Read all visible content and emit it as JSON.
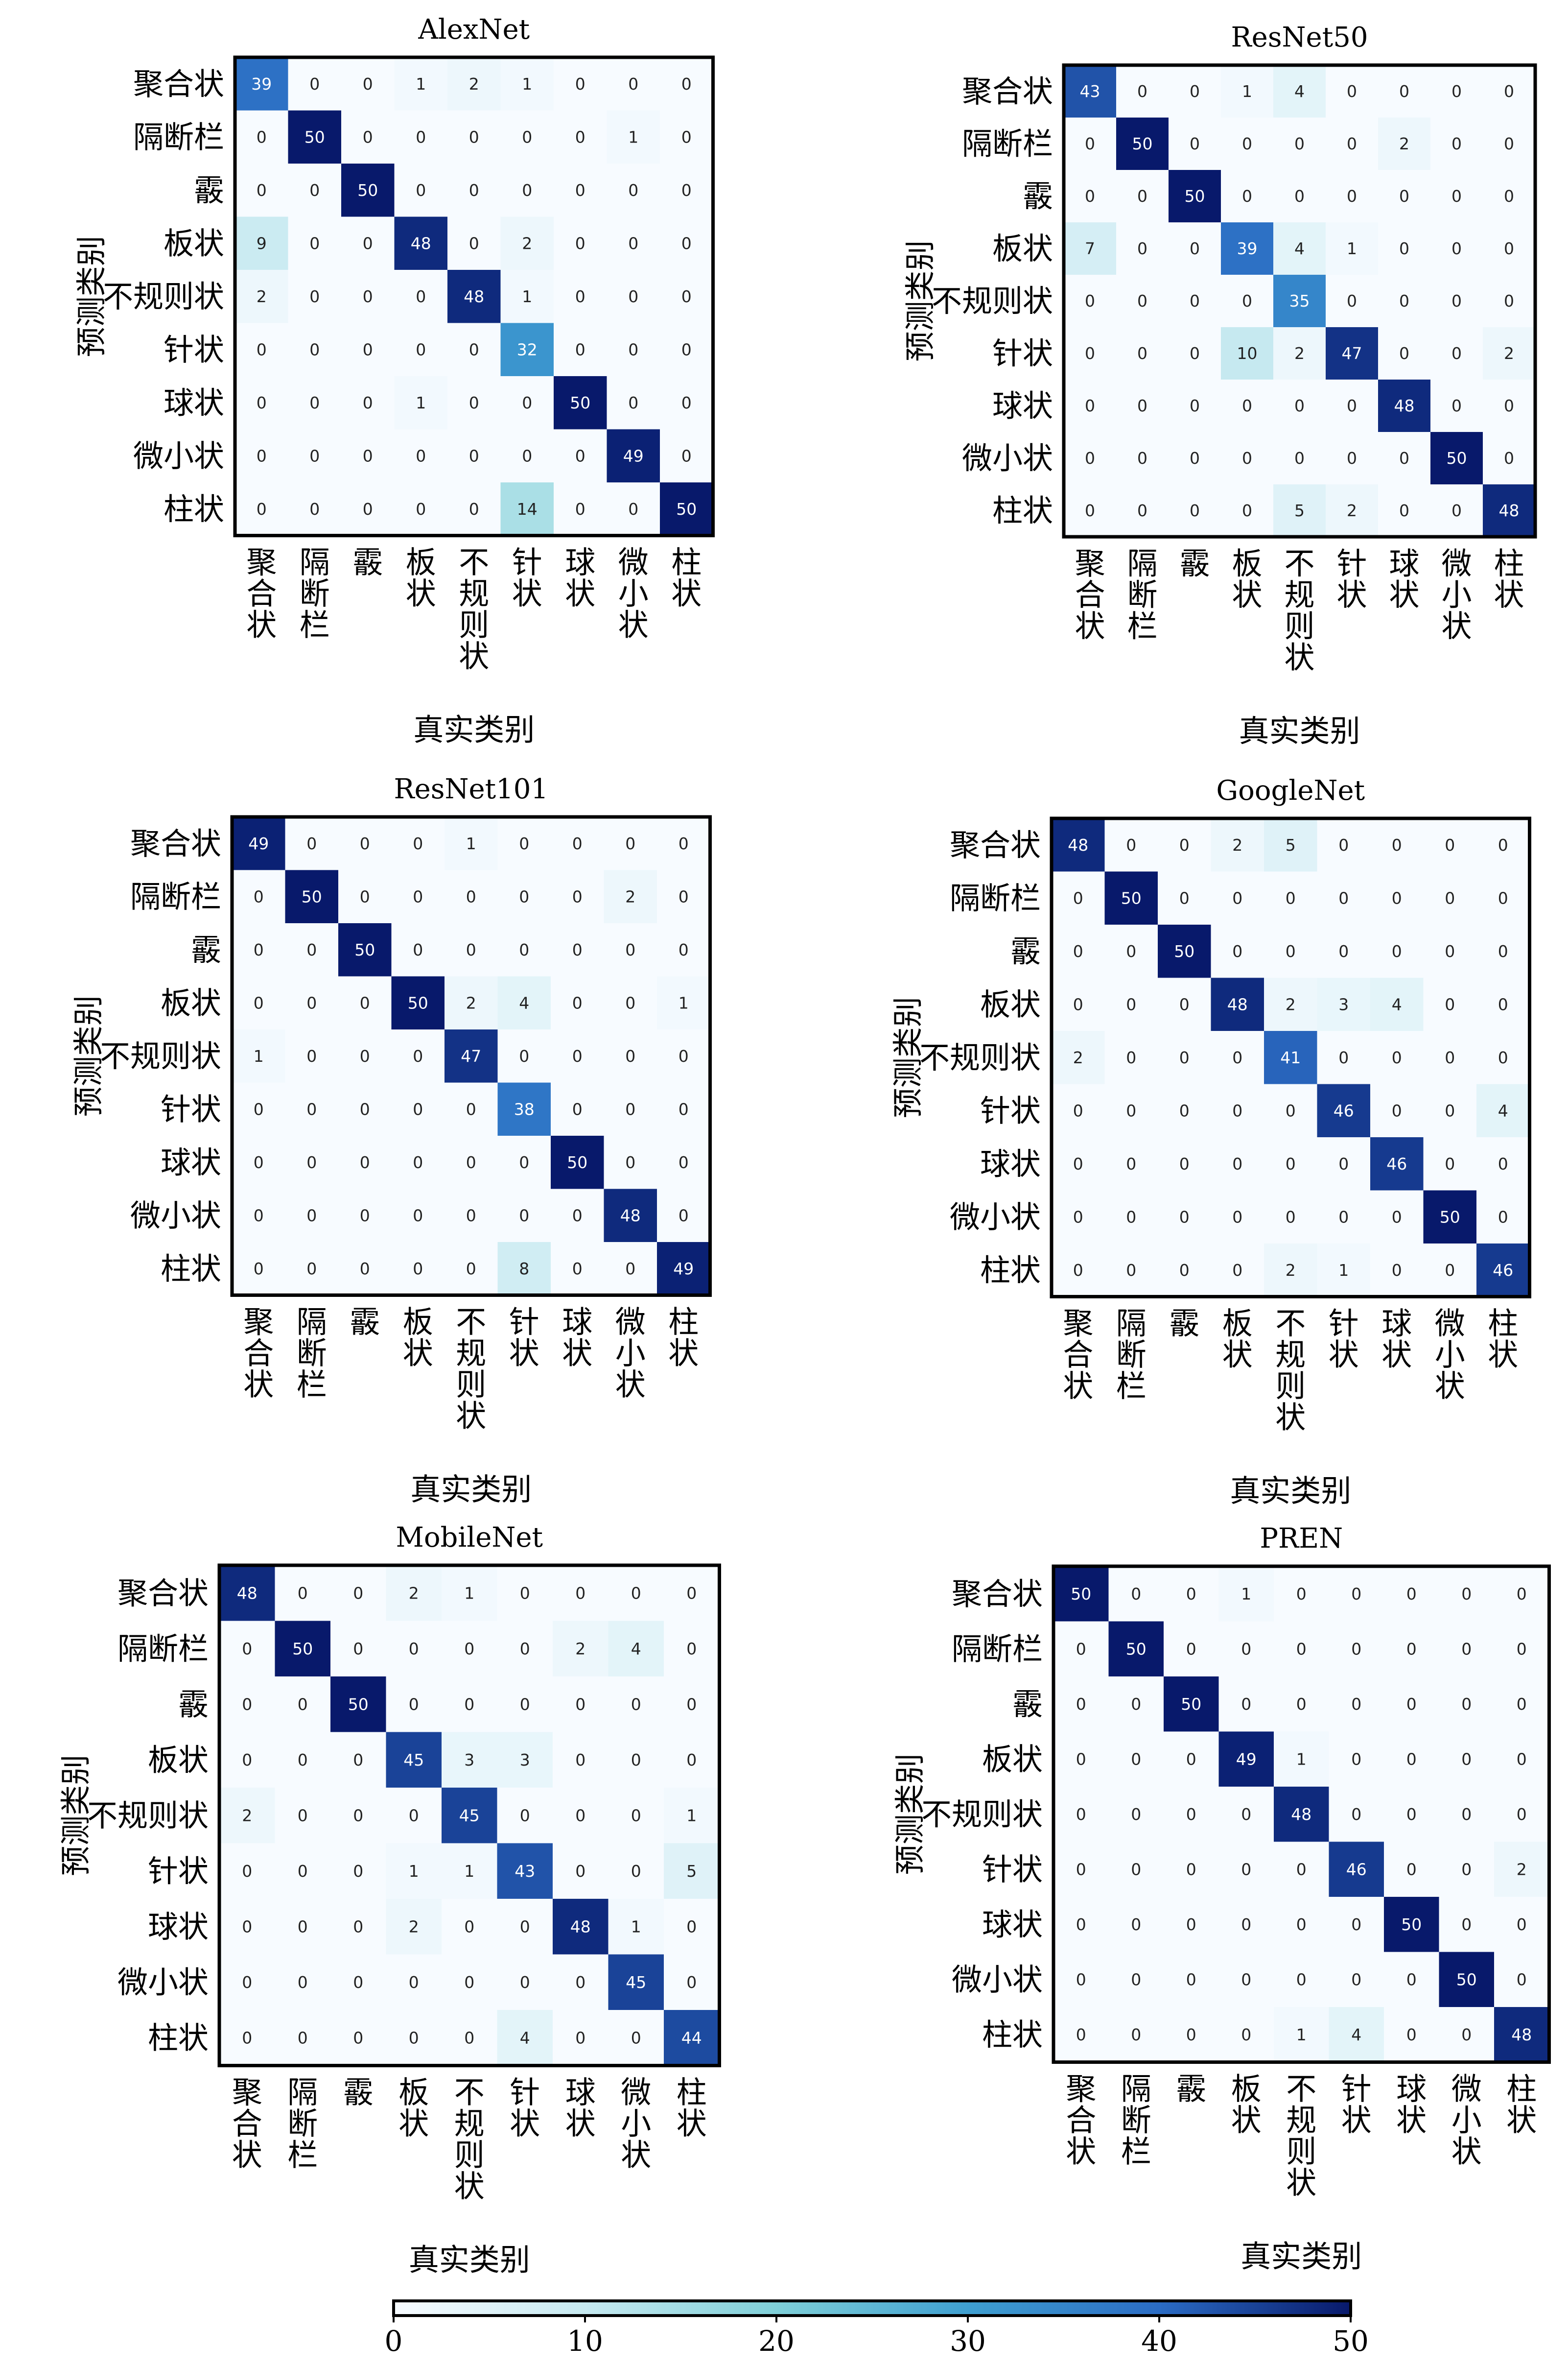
{
  "chart_data": [
    {
      "type": "heatmap",
      "title": "AlexNet",
      "xlabel": "真实类别",
      "ylabel": "预测类别",
      "categories": [
        "聚合状",
        "隔断栏",
        "霰",
        "板状",
        "不规则状",
        "针状",
        "球状",
        "微小状",
        "柱状"
      ],
      "values": [
        [
          39,
          0,
          0,
          1,
          2,
          1,
          0,
          0,
          0
        ],
        [
          0,
          50,
          0,
          0,
          0,
          0,
          0,
          1,
          0
        ],
        [
          0,
          0,
          50,
          0,
          0,
          0,
          0,
          0,
          0
        ],
        [
          9,
          0,
          0,
          48,
          0,
          2,
          0,
          0,
          0
        ],
        [
          2,
          0,
          0,
          0,
          48,
          1,
          0,
          0,
          0
        ],
        [
          0,
          0,
          0,
          0,
          0,
          32,
          0,
          0,
          0
        ],
        [
          0,
          0,
          0,
          1,
          0,
          0,
          50,
          0,
          0
        ],
        [
          0,
          0,
          0,
          0,
          0,
          0,
          0,
          49,
          0
        ],
        [
          0,
          0,
          0,
          0,
          0,
          14,
          0,
          0,
          50
        ]
      ]
    },
    {
      "type": "heatmap",
      "title": "ResNet50",
      "xlabel": "真实类别",
      "ylabel": "预测类别",
      "categories": [
        "聚合状",
        "隔断栏",
        "霰",
        "板状",
        "不规则状",
        "针状",
        "球状",
        "微小状",
        "柱状"
      ],
      "values": [
        [
          43,
          0,
          0,
          1,
          4,
          0,
          0,
          0,
          0
        ],
        [
          0,
          50,
          0,
          0,
          0,
          0,
          2,
          0,
          0
        ],
        [
          0,
          0,
          50,
          0,
          0,
          0,
          0,
          0,
          0
        ],
        [
          7,
          0,
          0,
          39,
          4,
          1,
          0,
          0,
          0
        ],
        [
          0,
          0,
          0,
          0,
          35,
          0,
          0,
          0,
          0
        ],
        [
          0,
          0,
          0,
          10,
          2,
          47,
          0,
          0,
          2
        ],
        [
          0,
          0,
          0,
          0,
          0,
          0,
          48,
          0,
          0
        ],
        [
          0,
          0,
          0,
          0,
          0,
          0,
          0,
          50,
          0
        ],
        [
          0,
          0,
          0,
          0,
          5,
          2,
          0,
          0,
          48
        ]
      ]
    },
    {
      "type": "heatmap",
      "title": "ResNet101",
      "xlabel": "真实类别",
      "ylabel": "预测类别",
      "categories": [
        "聚合状",
        "隔断栏",
        "霰",
        "板状",
        "不规则状",
        "针状",
        "球状",
        "微小状",
        "柱状"
      ],
      "values": [
        [
          49,
          0,
          0,
          0,
          1,
          0,
          0,
          0,
          0
        ],
        [
          0,
          50,
          0,
          0,
          0,
          0,
          0,
          2,
          0
        ],
        [
          0,
          0,
          50,
          0,
          0,
          0,
          0,
          0,
          0
        ],
        [
          0,
          0,
          0,
          50,
          2,
          4,
          0,
          0,
          1
        ],
        [
          1,
          0,
          0,
          0,
          47,
          0,
          0,
          0,
          0
        ],
        [
          0,
          0,
          0,
          0,
          0,
          38,
          0,
          0,
          0
        ],
        [
          0,
          0,
          0,
          0,
          0,
          0,
          50,
          0,
          0
        ],
        [
          0,
          0,
          0,
          0,
          0,
          0,
          0,
          48,
          0
        ],
        [
          0,
          0,
          0,
          0,
          0,
          8,
          0,
          0,
          49
        ]
      ]
    },
    {
      "type": "heatmap",
      "title": "GoogleNet",
      "xlabel": "真实类别",
      "ylabel": "预测类别",
      "categories": [
        "聚合状",
        "隔断栏",
        "霰",
        "板状",
        "不规则状",
        "针状",
        "球状",
        "微小状",
        "柱状"
      ],
      "values": [
        [
          48,
          0,
          0,
          2,
          5,
          0,
          0,
          0,
          0
        ],
        [
          0,
          50,
          0,
          0,
          0,
          0,
          0,
          0,
          0
        ],
        [
          0,
          0,
          50,
          0,
          0,
          0,
          0,
          0,
          0
        ],
        [
          0,
          0,
          0,
          48,
          2,
          3,
          4,
          0,
          0
        ],
        [
          2,
          0,
          0,
          0,
          41,
          0,
          0,
          0,
          0
        ],
        [
          0,
          0,
          0,
          0,
          0,
          46,
          0,
          0,
          4
        ],
        [
          0,
          0,
          0,
          0,
          0,
          0,
          46,
          0,
          0
        ],
        [
          0,
          0,
          0,
          0,
          0,
          0,
          0,
          50,
          0
        ],
        [
          0,
          0,
          0,
          0,
          2,
          1,
          0,
          0,
          46
        ]
      ]
    },
    {
      "type": "heatmap",
      "title": "MobileNet",
      "xlabel": "真实类别",
      "ylabel": "预测类别",
      "categories": [
        "聚合状",
        "隔断栏",
        "霰",
        "板状",
        "不规则状",
        "针状",
        "球状",
        "微小状",
        "柱状"
      ],
      "values": [
        [
          48,
          0,
          0,
          2,
          1,
          0,
          0,
          0,
          0
        ],
        [
          0,
          50,
          0,
          0,
          0,
          0,
          2,
          4,
          0
        ],
        [
          0,
          0,
          50,
          0,
          0,
          0,
          0,
          0,
          0
        ],
        [
          0,
          0,
          0,
          45,
          3,
          3,
          0,
          0,
          0
        ],
        [
          2,
          0,
          0,
          0,
          45,
          0,
          0,
          0,
          1
        ],
        [
          0,
          0,
          0,
          1,
          1,
          43,
          0,
          0,
          5
        ],
        [
          0,
          0,
          0,
          2,
          0,
          0,
          48,
          1,
          0
        ],
        [
          0,
          0,
          0,
          0,
          0,
          0,
          0,
          45,
          0
        ],
        [
          0,
          0,
          0,
          0,
          0,
          4,
          0,
          0,
          44
        ]
      ]
    },
    {
      "type": "heatmap",
      "title": "PREN",
      "xlabel": "真实类别",
      "ylabel": "预测类别",
      "categories": [
        "聚合状",
        "隔断栏",
        "霰",
        "板状",
        "不规则状",
        "针状",
        "球状",
        "微小状",
        "柱状"
      ],
      "values": [
        [
          50,
          0,
          0,
          1,
          0,
          0,
          0,
          0,
          0
        ],
        [
          0,
          50,
          0,
          0,
          0,
          0,
          0,
          0,
          0
        ],
        [
          0,
          0,
          50,
          0,
          0,
          0,
          0,
          0,
          0
        ],
        [
          0,
          0,
          0,
          49,
          1,
          0,
          0,
          0,
          0
        ],
        [
          0,
          0,
          0,
          0,
          48,
          0,
          0,
          0,
          0
        ],
        [
          0,
          0,
          0,
          0,
          0,
          46,
          0,
          0,
          2
        ],
        [
          0,
          0,
          0,
          0,
          0,
          0,
          50,
          0,
          0
        ],
        [
          0,
          0,
          0,
          0,
          0,
          0,
          0,
          50,
          0
        ],
        [
          0,
          0,
          0,
          0,
          1,
          4,
          0,
          0,
          48
        ]
      ]
    }
  ],
  "colorbar": {
    "min": 0,
    "max": 50,
    "ticks": [
      0,
      10,
      20,
      30,
      40,
      50
    ],
    "colormap": "Blues",
    "colors": [
      "#f7fbff",
      "#c6e9f0",
      "#7fcfd8",
      "#3f9fd0",
      "#2b6cc4",
      "#08196b"
    ]
  }
}
